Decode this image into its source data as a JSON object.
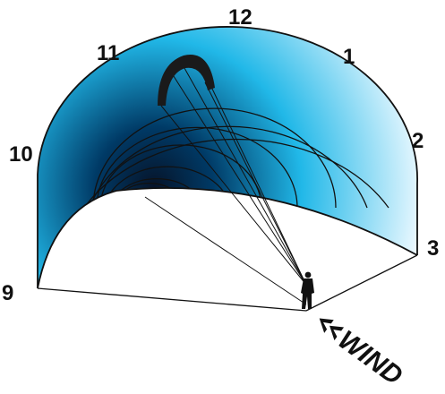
{
  "clock_positions": [
    "9",
    "10",
    "11",
    "12",
    "1",
    "2",
    "3"
  ],
  "wind_label": "WIND",
  "colors": {
    "window_light": "#eaf8ff",
    "window_mid": "#21b8e8",
    "window_deep": "#003a66",
    "window_core": "#06142a",
    "outline": "#111111",
    "kite": "#1a1a1a",
    "background": "#ffffff"
  },
  "icons": [
    "kite-icon",
    "kiter-silhouette-icon",
    "wind-arrow-icon"
  ]
}
